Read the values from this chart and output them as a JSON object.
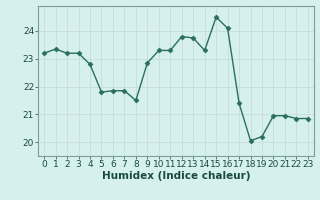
{
  "x": [
    0,
    1,
    2,
    3,
    4,
    5,
    6,
    7,
    8,
    9,
    10,
    11,
    12,
    13,
    14,
    15,
    16,
    17,
    18,
    19,
    20,
    21,
    22,
    23
  ],
  "y": [
    23.2,
    23.35,
    23.2,
    23.2,
    22.8,
    21.8,
    21.85,
    21.85,
    21.5,
    22.85,
    23.3,
    23.3,
    23.8,
    23.75,
    23.3,
    24.5,
    24.1,
    21.4,
    20.05,
    20.2,
    20.95,
    20.95,
    20.85,
    20.85
  ],
  "line_color": "#2a6e62",
  "marker": "D",
  "marker_size": 2.5,
  "linewidth": 1.0,
  "xlabel": "Humidex (Indice chaleur)",
  "ylim": [
    19.5,
    24.9
  ],
  "xlim": [
    -0.5,
    23.5
  ],
  "yticks": [
    20,
    21,
    22,
    23,
    24
  ],
  "xticks": [
    0,
    1,
    2,
    3,
    4,
    5,
    6,
    7,
    8,
    9,
    10,
    11,
    12,
    13,
    14,
    15,
    16,
    17,
    18,
    19,
    20,
    21,
    22,
    23
  ],
  "bg_color": "#d6f0ee",
  "grid_color_major": "#c8dbd8",
  "grid_color_minor": "#dce9e7",
  "xlabel_fontsize": 7.5,
  "tick_fontsize": 6.5,
  "spine_color": "#7a9e9a"
}
